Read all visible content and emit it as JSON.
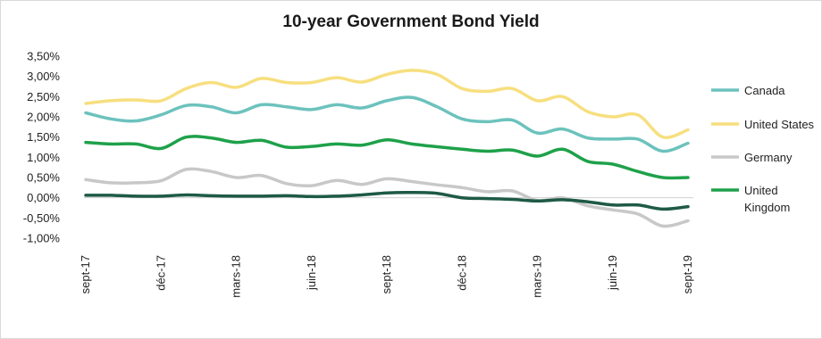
{
  "chart_data": {
    "type": "line",
    "title": "10-year Government Bond Yield",
    "xlabel": "",
    "ylabel": "",
    "ylim": [
      -1.0,
      3.5
    ],
    "y_ticks": [
      "3,50%",
      "3,00%",
      "2,50%",
      "2,00%",
      "1,50%",
      "1,00%",
      "0,50%",
      "0,00%",
      "-0,50%",
      "-1,00%"
    ],
    "x_ticks": [
      "sept-17",
      "déc-17",
      "mars-18",
      "juin-18",
      "sept-18",
      "déc-18",
      "mars-19",
      "juin-19",
      "sept-19"
    ],
    "x": [
      "sept-17",
      "oct-17",
      "nov-17",
      "déc-17",
      "janv-18",
      "févr-18",
      "mars-18",
      "avr-18",
      "mai-18",
      "juin-18",
      "juil-18",
      "août-18",
      "sept-18",
      "oct-18",
      "nov-18",
      "déc-18",
      "janv-19",
      "févr-19",
      "mars-19",
      "avr-19",
      "mai-19",
      "juin-19",
      "juil-19",
      "août-19",
      "sept-19"
    ],
    "legend_position": "right",
    "grid": false,
    "series": [
      {
        "name": "Canada",
        "color": "#6cc2bd",
        "values": [
          2.1,
          1.95,
          1.9,
          2.05,
          2.28,
          2.25,
          2.1,
          2.3,
          2.25,
          2.18,
          2.3,
          2.22,
          2.4,
          2.48,
          2.25,
          1.95,
          1.88,
          1.92,
          1.6,
          1.7,
          1.48,
          1.45,
          1.45,
          1.15,
          1.35
        ]
      },
      {
        "name": "United States",
        "color": "#f7df7f",
        "values": [
          2.33,
          2.4,
          2.42,
          2.4,
          2.7,
          2.85,
          2.73,
          2.95,
          2.85,
          2.85,
          2.97,
          2.86,
          3.05,
          3.15,
          3.05,
          2.7,
          2.63,
          2.7,
          2.4,
          2.5,
          2.13,
          2.0,
          2.05,
          1.5,
          1.68
        ]
      },
      {
        "name": "Germany",
        "color": "#c8c8c8",
        "values": [
          0.45,
          0.37,
          0.37,
          0.42,
          0.7,
          0.65,
          0.5,
          0.55,
          0.35,
          0.3,
          0.43,
          0.33,
          0.47,
          0.4,
          0.32,
          0.25,
          0.15,
          0.17,
          -0.07,
          0.0,
          -0.2,
          -0.3,
          -0.4,
          -0.7,
          -0.57
        ]
      },
      {
        "name": "United Kingdom",
        "color": "#1ea14a",
        "values": [
          1.37,
          1.33,
          1.33,
          1.22,
          1.5,
          1.48,
          1.37,
          1.42,
          1.25,
          1.27,
          1.33,
          1.3,
          1.43,
          1.33,
          1.26,
          1.2,
          1.15,
          1.18,
          1.03,
          1.2,
          0.9,
          0.83,
          0.65,
          0.5,
          0.5
        ]
      },
      {
        "name": "",
        "color": "#1e5a45",
        "values": [
          0.06,
          0.06,
          0.04,
          0.04,
          0.07,
          0.05,
          0.04,
          0.04,
          0.05,
          0.03,
          0.04,
          0.07,
          0.12,
          0.13,
          0.11,
          0.0,
          -0.02,
          -0.04,
          -0.08,
          -0.05,
          -0.1,
          -0.18,
          -0.18,
          -0.28,
          -0.22
        ]
      }
    ],
    "legend": [
      {
        "label": "Canada",
        "color": "#6cc2bd"
      },
      {
        "label": "United States",
        "color": "#f7df7f"
      },
      {
        "label": "Germany",
        "color": "#c8c8c8"
      },
      {
        "label_line1": "United",
        "label_line2": "Kingdom",
        "color": "#1ea14a"
      }
    ]
  }
}
